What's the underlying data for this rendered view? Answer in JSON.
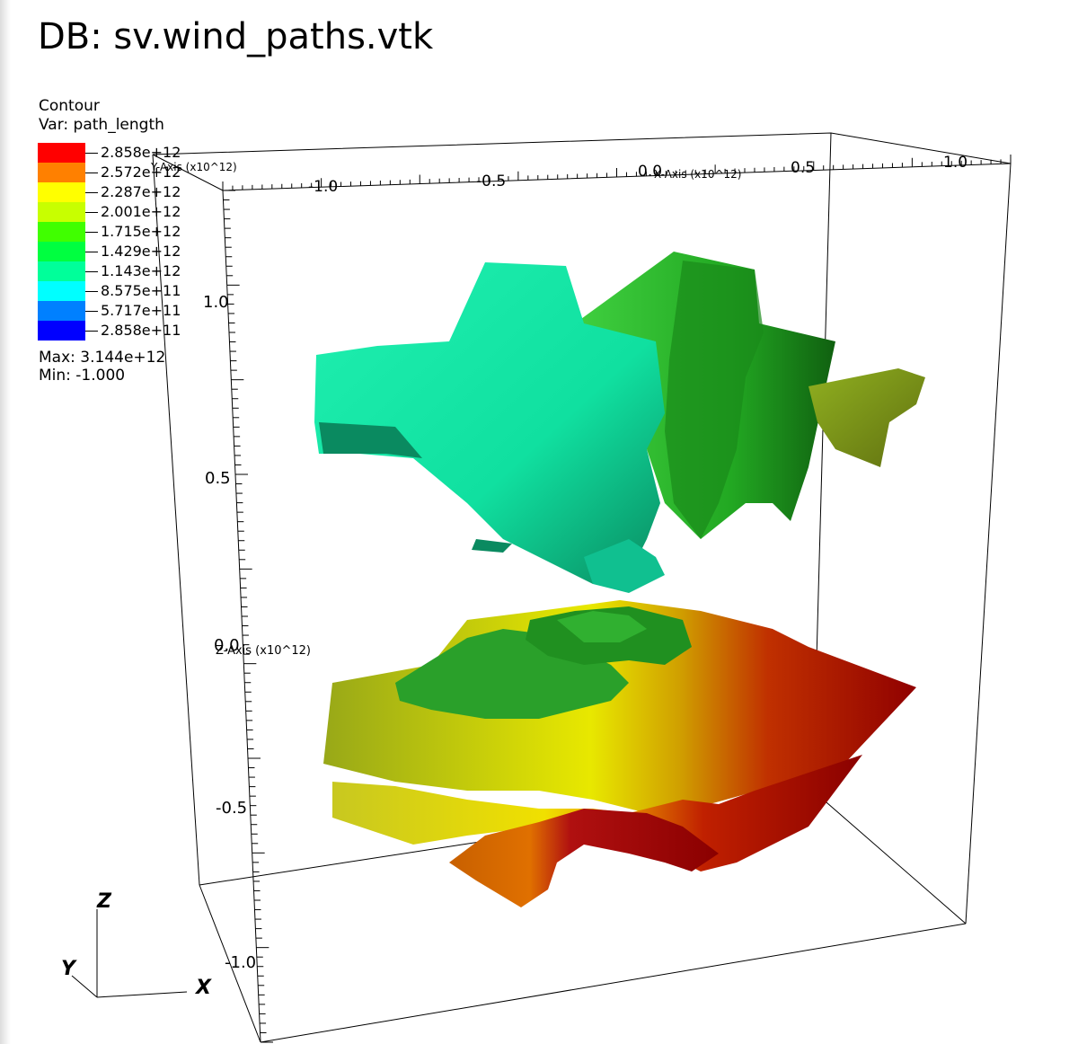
{
  "window": {
    "title": "DB: sv.wind_paths.vtk"
  },
  "legend": {
    "plot_type": "Contour",
    "variable": "Var: path_length",
    "levels": [
      {
        "label": "2.858e+12",
        "color": "#ff0000"
      },
      {
        "label": "2.572e+12",
        "color": "#ff8000"
      },
      {
        "label": "2.287e+12",
        "color": "#ffff00"
      },
      {
        "label": "2.001e+12",
        "color": "#c8ff00"
      },
      {
        "label": "1.715e+12",
        "color": "#40ff00"
      },
      {
        "label": "1.429e+12",
        "color": "#00ff40"
      },
      {
        "label": "1.143e+12",
        "color": "#00ff9a"
      },
      {
        "label": "8.575e+11",
        "color": "#00ffff"
      },
      {
        "label": "5.717e+11",
        "color": "#0080ff"
      },
      {
        "label": "2.858e+11",
        "color": "#0000ff"
      }
    ],
    "max": "Max:  3.144e+12",
    "min": "Min: -1.000"
  },
  "axes": {
    "x_title": "X-Axis (x10^12)",
    "y_title": "Y-Axis (x10^12)",
    "z_title": "Z-Axis (x10^12)",
    "x_ticks": [
      "-1.0",
      "-0.5",
      "0.0",
      "0.5",
      "1.0"
    ],
    "z_ticks": [
      "1.0",
      "0.5",
      "0.0",
      "-0.5",
      "-1.0"
    ]
  },
  "triad": {
    "x": "X",
    "y": "Y",
    "z": "Z"
  },
  "colors": {
    "teal_surface": "#10e0a0",
    "green_surface": "#30c030",
    "olive_surface": "#90a010",
    "yellow_surface": "#d8d800",
    "orange_surface": "#e07800",
    "red_surface": "#b00000"
  }
}
